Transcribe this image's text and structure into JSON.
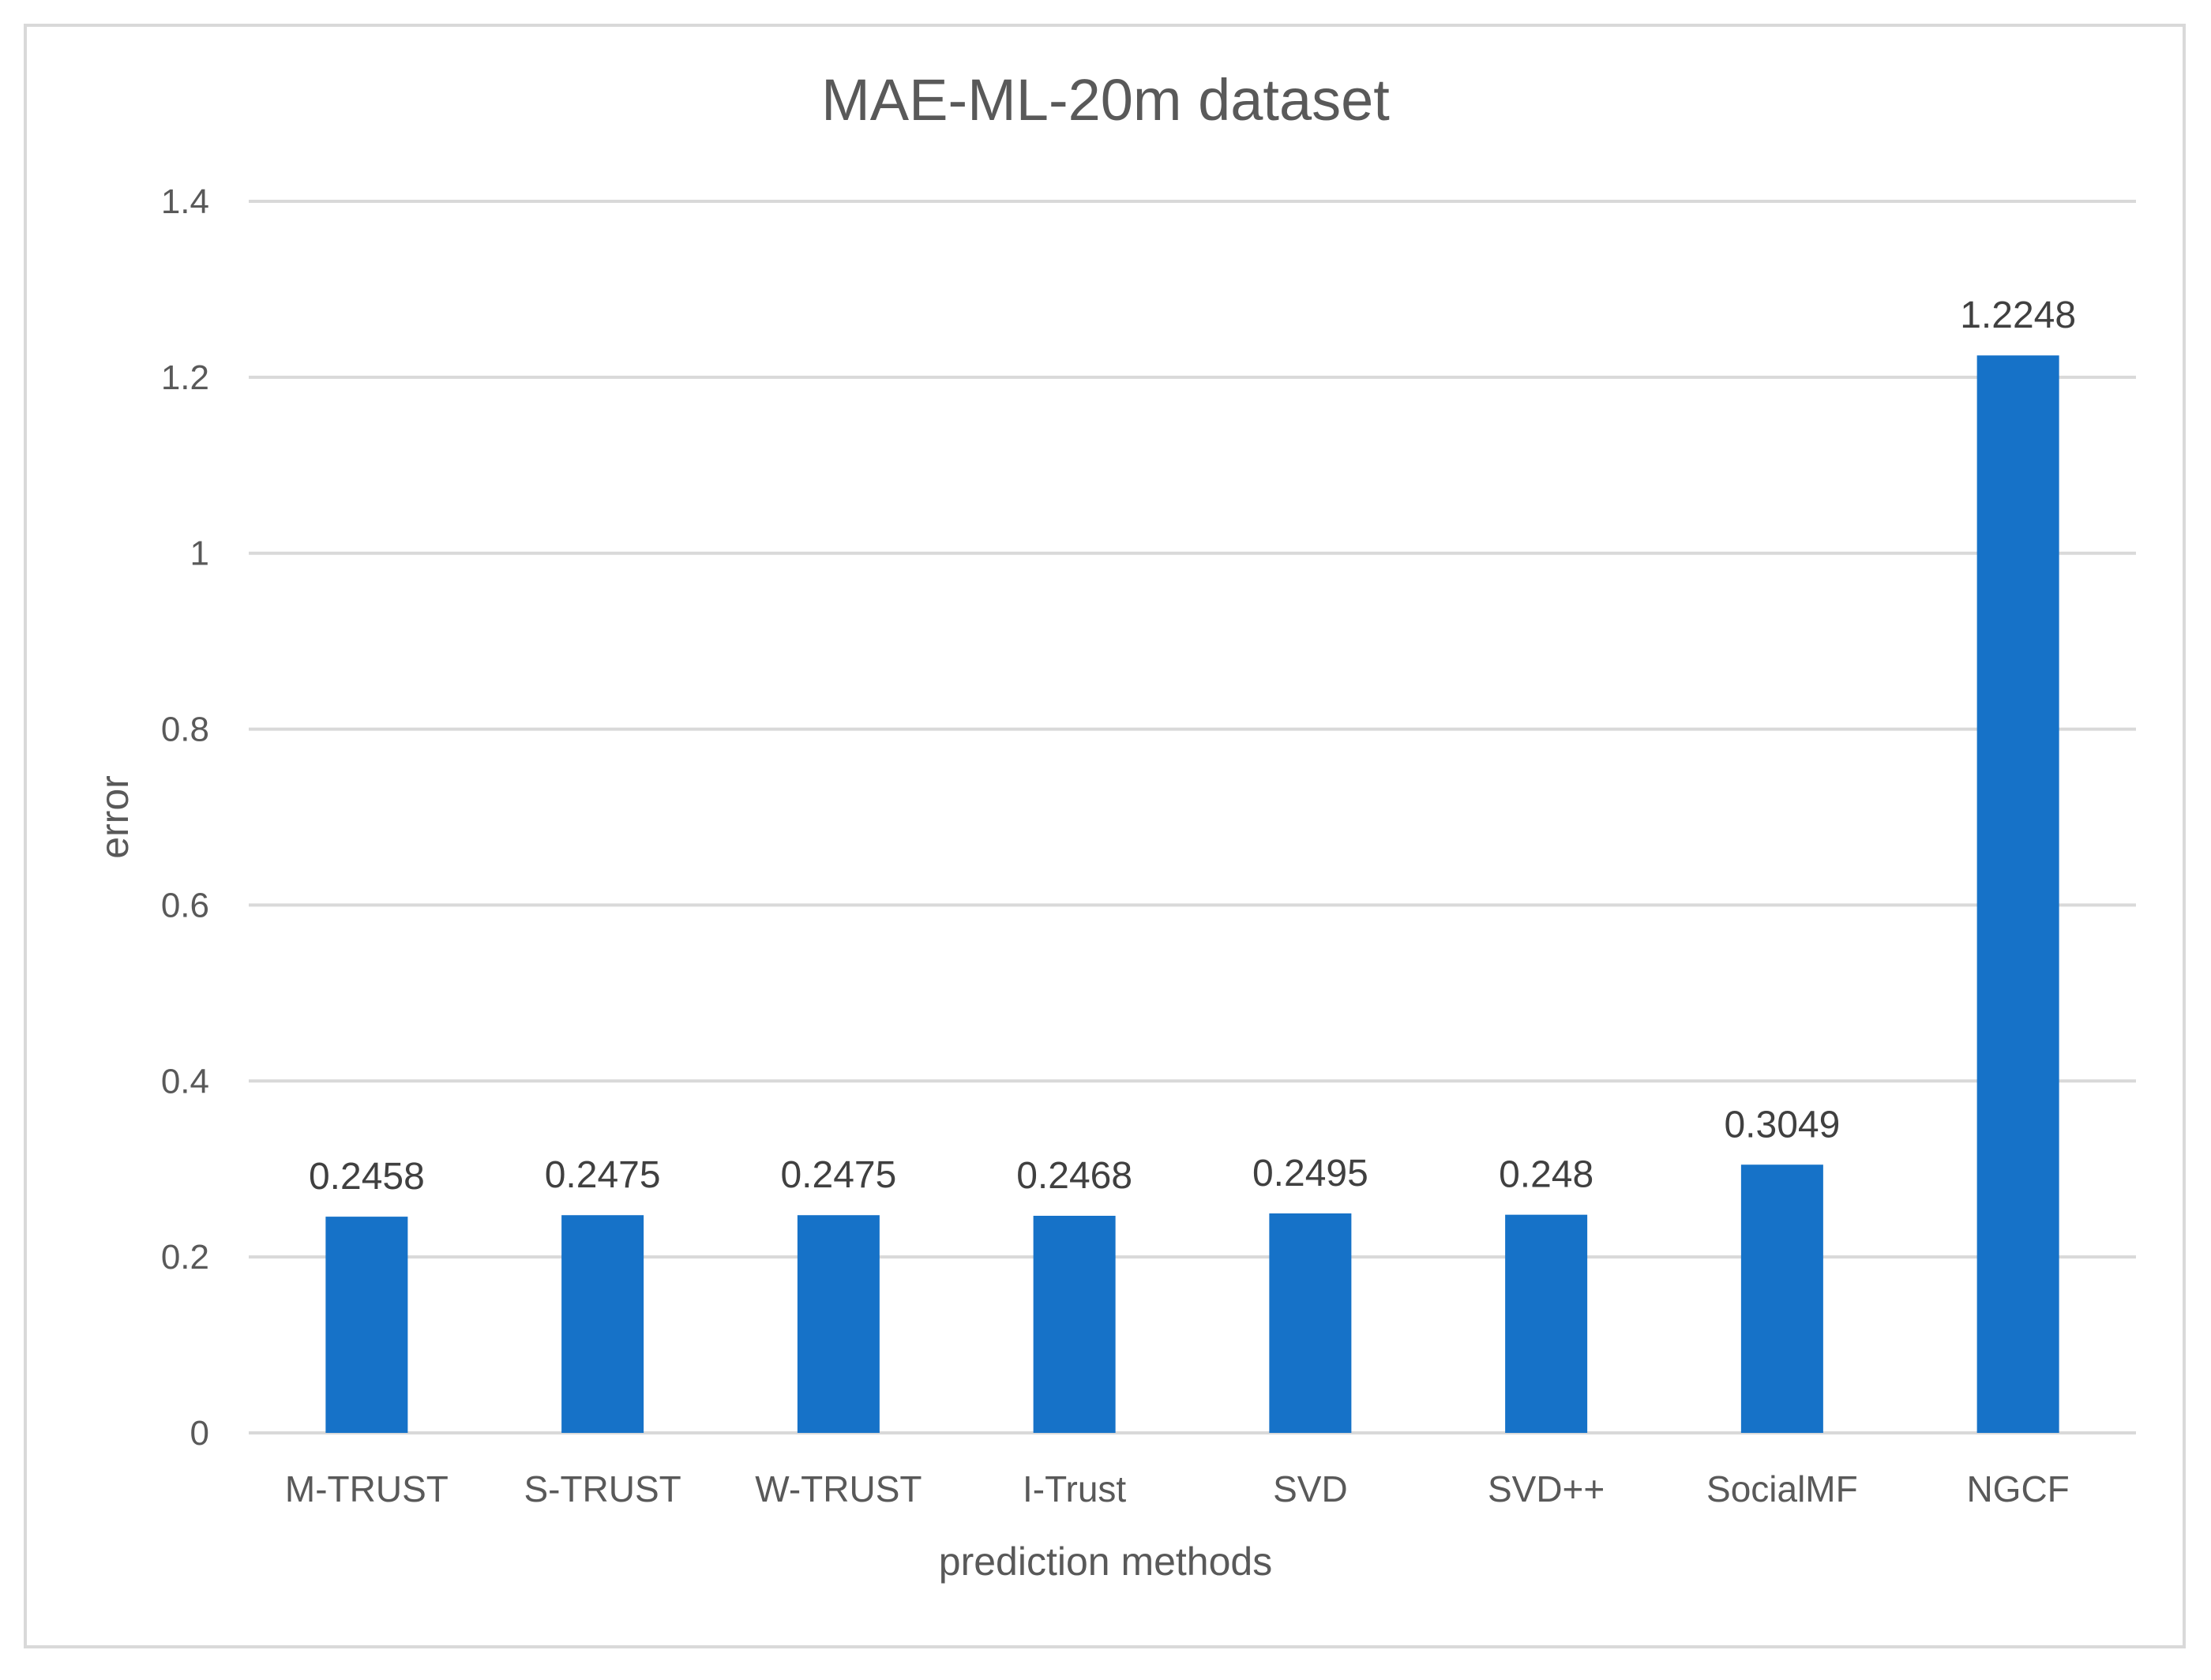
{
  "chart_data": {
    "type": "bar",
    "title": "MAE-ML-20m dataset",
    "xlabel": "prediction  methods",
    "ylabel": "error",
    "categories": [
      "M-TRUST",
      "S-TRUST",
      "W-TRUST",
      "I-Trust",
      "SVD",
      "SVD++",
      "SocialMF",
      "NGCF"
    ],
    "values": [
      0.2458,
      0.2475,
      0.2475,
      0.2468,
      0.2495,
      0.248,
      0.3049,
      1.2248
    ],
    "data_labels": [
      "0.2458",
      "0.2475",
      "0.2475",
      "0.2468",
      "0.2495",
      "0.248",
      "0.3049",
      "1.2248"
    ],
    "ylim": [
      0,
      1.4
    ],
    "yticks": [
      "0",
      "0.2",
      "0.4",
      "0.6",
      "0.8",
      "1",
      "1.2",
      "1.4"
    ],
    "grid": true,
    "legend": "none",
    "colors": {
      "bar": "#1672c8",
      "grid": "#d9d9d9",
      "text": "#595959"
    }
  }
}
